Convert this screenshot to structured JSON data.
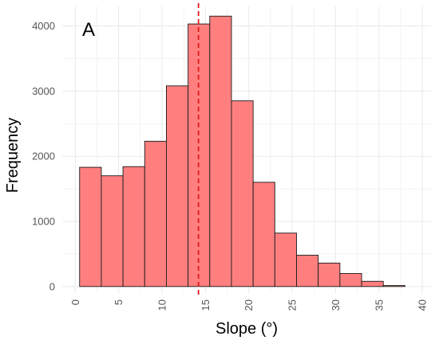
{
  "chart_data": {
    "type": "bar",
    "panel_label": "A",
    "xlabel": "Slope (°)",
    "ylabel": "Frequency",
    "bin_width": 2.5,
    "bins": [
      {
        "start": 0.5,
        "end": 3.0,
        "count": 1830
      },
      {
        "start": 3.0,
        "end": 5.5,
        "count": 1700
      },
      {
        "start": 5.5,
        "end": 8.0,
        "count": 1840
      },
      {
        "start": 8.0,
        "end": 10.5,
        "count": 2230
      },
      {
        "start": 10.5,
        "end": 13.0,
        "count": 3080
      },
      {
        "start": 13.0,
        "end": 15.5,
        "count": 4030
      },
      {
        "start": 15.5,
        "end": 18.0,
        "count": 4150
      },
      {
        "start": 18.0,
        "end": 20.5,
        "count": 2850
      },
      {
        "start": 20.5,
        "end": 23.0,
        "count": 1600
      },
      {
        "start": 23.0,
        "end": 25.5,
        "count": 820
      },
      {
        "start": 25.5,
        "end": 28.0,
        "count": 480
      },
      {
        "start": 28.0,
        "end": 30.5,
        "count": 360
      },
      {
        "start": 30.5,
        "end": 33.0,
        "count": 200
      },
      {
        "start": 33.0,
        "end": 35.5,
        "count": 80
      },
      {
        "start": 35.5,
        "end": 38.0,
        "count": 15
      }
    ],
    "vline": {
      "x": 14.2,
      "color": "#e31a1c",
      "style": "dashed"
    },
    "xlim": [
      -1.5,
      41
    ],
    "ylim": [
      -100,
      4300
    ],
    "xticks": [
      0,
      5,
      10,
      15,
      20,
      25,
      30,
      35,
      40
    ],
    "yticks": [
      0,
      1000,
      2000,
      3000,
      4000
    ],
    "x_tick_labels": [
      "0",
      "5",
      "10",
      "15",
      "20",
      "25",
      "30",
      "35",
      "40"
    ],
    "y_tick_labels": [
      "0",
      "1000",
      "2000",
      "3000",
      "4000"
    ],
    "bar_fill": "#ff7f7f",
    "bar_stroke": "#1a1a1a",
    "grid": true,
    "grid_color": "#ebebeb",
    "legend": "none"
  }
}
